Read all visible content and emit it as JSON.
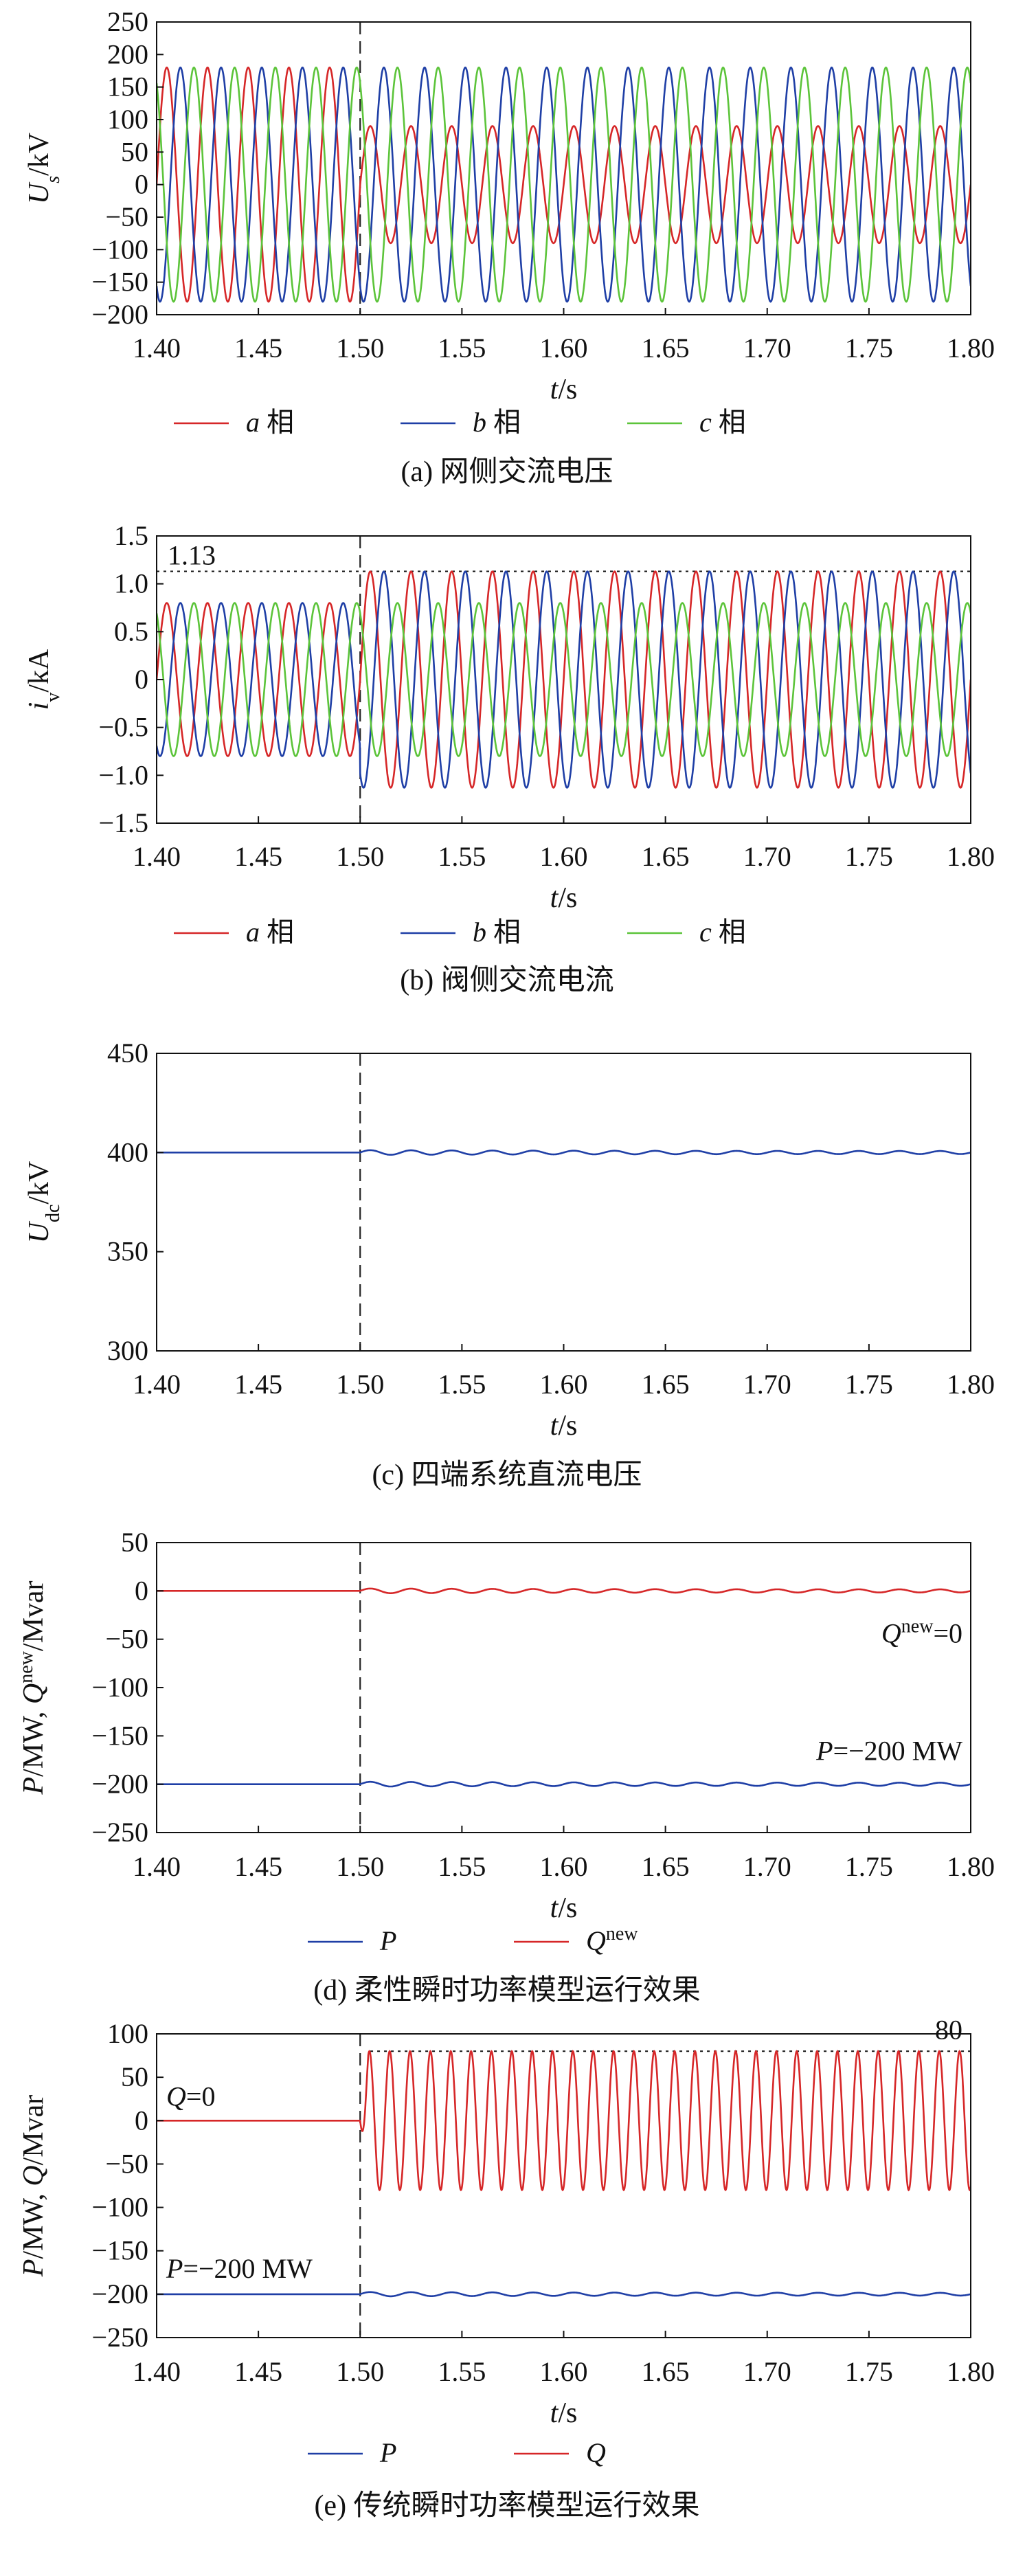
{
  "chart_data": [
    {
      "type": "line",
      "panel": "a",
      "caption": "(a) 网侧交流电压",
      "xlabel": "t/s",
      "ylabel": "Us/kV",
      "xlim": [
        1.4,
        1.8
      ],
      "ylim": [
        -200,
        250
      ],
      "xticks": [
        "1.40",
        "1.45",
        "1.50",
        "1.55",
        "1.60",
        "1.65",
        "1.70",
        "1.75",
        "1.80"
      ],
      "yticks": [
        "250",
        "200",
        "150",
        "100",
        "50",
        "0",
        "−50",
        "−100",
        "−150",
        "−200"
      ],
      "event_time": 1.5,
      "frequency_hz": 50,
      "series": [
        {
          "name": "a 相",
          "color": "#d62728",
          "phase_deg": 0,
          "segments": [
            {
              "t0": 1.4,
              "t1": 1.5,
              "amplitude": 180
            },
            {
              "t0": 1.5,
              "t1": 1.8,
              "amplitude": 90
            }
          ]
        },
        {
          "name": "b 相",
          "color": "#1f3fa6",
          "phase_deg": -120,
          "segments": [
            {
              "t0": 1.4,
              "t1": 1.5,
              "amplitude": 180
            },
            {
              "t0": 1.5,
              "t1": 1.8,
              "amplitude": 180
            }
          ]
        },
        {
          "name": "c 相",
          "color": "#5cc43a",
          "phase_deg": 120,
          "segments": [
            {
              "t0": 1.4,
              "t1": 1.5,
              "amplitude": 180
            },
            {
              "t0": 1.5,
              "t1": 1.8,
              "amplitude": 180
            }
          ]
        }
      ],
      "legend": [
        "a 相",
        "b 相",
        "c 相"
      ]
    },
    {
      "type": "line",
      "panel": "b",
      "caption": "(b) 阀侧交流电流",
      "xlabel": "t/s",
      "ylabel": "iv/kA",
      "xlim": [
        1.4,
        1.8
      ],
      "ylim": [
        -1.5,
        1.5
      ],
      "xticks": [
        "1.40",
        "1.45",
        "1.50",
        "1.55",
        "1.60",
        "1.65",
        "1.70",
        "1.75",
        "1.80"
      ],
      "yticks": [
        "1.5",
        "1.0",
        "0.5",
        "0",
        "−0.5",
        "−1.0",
        "−1.5"
      ],
      "event_time": 1.5,
      "frequency_hz": 50,
      "annotation": {
        "text": "1.13",
        "value": 1.13
      },
      "series": [
        {
          "name": "a 相",
          "color": "#d62728",
          "phase_deg": 0,
          "segments": [
            {
              "t0": 1.4,
              "t1": 1.5,
              "amplitude": 0.8
            },
            {
              "t0": 1.5,
              "t1": 1.8,
              "amplitude": 1.13
            }
          ]
        },
        {
          "name": "b 相",
          "color": "#1f3fa6",
          "phase_deg": -120,
          "segments": [
            {
              "t0": 1.4,
              "t1": 1.5,
              "amplitude": 0.8
            },
            {
              "t0": 1.5,
              "t1": 1.8,
              "amplitude": 1.13
            }
          ]
        },
        {
          "name": "c 相",
          "color": "#5cc43a",
          "phase_deg": 120,
          "segments": [
            {
              "t0": 1.4,
              "t1": 1.5,
              "amplitude": 0.8
            },
            {
              "t0": 1.5,
              "t1": 1.8,
              "amplitude": 0.8
            }
          ]
        }
      ],
      "legend": [
        "a 相",
        "b 相",
        "c 相"
      ]
    },
    {
      "type": "line",
      "panel": "c",
      "caption": "(c) 四端系统直流电压",
      "xlabel": "t/s",
      "ylabel": "Udc/kV",
      "xlim": [
        1.4,
        1.8
      ],
      "ylim": [
        300,
        450
      ],
      "xticks": [
        "1.40",
        "1.45",
        "1.50",
        "1.55",
        "1.60",
        "1.65",
        "1.70",
        "1.75",
        "1.80"
      ],
      "yticks": [
        "450",
        "400",
        "350",
        "300"
      ],
      "event_time": 1.5,
      "series": [
        {
          "name": "Udc",
          "color": "#1f3fa6",
          "base": 400,
          "ripple_after_event": 1.2,
          "ripple_hz": 50
        }
      ]
    },
    {
      "type": "line",
      "panel": "d",
      "caption": "(d) 柔性瞬时功率模型运行效果",
      "xlabel": "t/s",
      "ylabel": "P/MW, Qnew/Mvar",
      "xlim": [
        1.4,
        1.8
      ],
      "ylim": [
        -250,
        50
      ],
      "xticks": [
        "1.40",
        "1.45",
        "1.50",
        "1.55",
        "1.60",
        "1.65",
        "1.70",
        "1.75",
        "1.80"
      ],
      "yticks": [
        "50",
        "0",
        "−50",
        "−100",
        "−150",
        "−200",
        "−250"
      ],
      "event_time": 1.5,
      "annotations": [
        {
          "text": "Qnew=0",
          "value": 0
        },
        {
          "text": "P=−200 MW",
          "value": -200
        }
      ],
      "series": [
        {
          "name": "P",
          "color": "#1f3fa6",
          "base": -200,
          "ripple_after_event": 2.5,
          "ripple_hz": 50
        },
        {
          "name": "Qnew",
          "color": "#d62728",
          "base": 0,
          "ripple_after_event": 2.5,
          "ripple_hz": 50
        }
      ],
      "legend": [
        "P",
        "Qnew"
      ]
    },
    {
      "type": "line",
      "panel": "e",
      "caption": "(e) 传统瞬时功率模型运行效果",
      "xlabel": "t/s",
      "ylabel": "P/MW, Q/Mvar",
      "xlim": [
        1.4,
        1.8
      ],
      "ylim": [
        -250,
        100
      ],
      "xticks": [
        "1.40",
        "1.45",
        "1.50",
        "1.55",
        "1.60",
        "1.65",
        "1.70",
        "1.75",
        "1.80"
      ],
      "yticks": [
        "100",
        "50",
        "0",
        "−50",
        "−100",
        "−150",
        "−200",
        "−250"
      ],
      "event_time": 1.5,
      "annotations": [
        {
          "text": "80",
          "value": 80
        },
        {
          "text": "Q=0",
          "value": 0
        },
        {
          "text": "P=−200 MW",
          "value": -200
        }
      ],
      "series": [
        {
          "name": "P",
          "color": "#1f3fa6",
          "base": -200,
          "ripple_after_event": 2.5,
          "ripple_hz": 50
        },
        {
          "name": "Q",
          "color": "#d62728",
          "base": 0,
          "oscillation_after_event": 80,
          "oscillation_hz": 100
        }
      ],
      "legend": [
        "P",
        "Q"
      ]
    }
  ]
}
